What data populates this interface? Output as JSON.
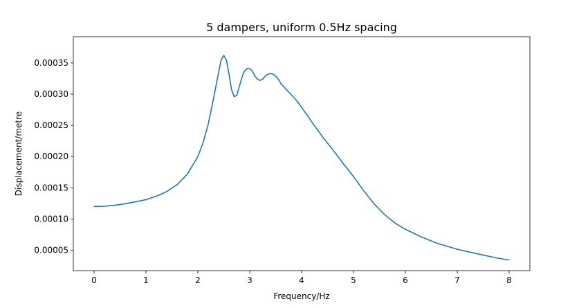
{
  "chart_data": {
    "type": "line",
    "title": "5 dampers, uniform 0.5Hz spacing",
    "xlabel": "Frequency/Hz",
    "ylabel": "Displacement/metre",
    "xlim": [
      -0.4,
      8.4
    ],
    "ylim": [
      1.73e-05,
      0.000392
    ],
    "xticks": [
      0,
      1,
      2,
      3,
      4,
      5,
      6,
      7,
      8
    ],
    "xtick_labels": [
      "0",
      "1",
      "2",
      "3",
      "4",
      "5",
      "6",
      "7",
      "8"
    ],
    "yticks": [
      5e-05,
      0.0001,
      0.00015,
      0.0002,
      0.00025,
      0.0003,
      0.00035
    ],
    "ytick_labels": [
      "0.00005",
      "0.00010",
      "0.00015",
      "0.00020",
      "0.00025",
      "0.00030",
      "0.00035"
    ],
    "grid": false,
    "line_color": "#1f77b4",
    "series": [
      {
        "x": [
          0,
          0.2,
          0.4,
          0.6,
          0.8,
          1.0,
          1.2,
          1.4,
          1.6,
          1.8,
          2.0,
          2.1,
          2.2,
          2.3,
          2.4,
          2.45,
          2.5,
          2.55,
          2.6,
          2.65,
          2.7,
          2.75,
          2.8,
          2.85,
          2.9,
          2.95,
          3.0,
          3.05,
          3.1,
          3.15,
          3.2,
          3.25,
          3.3,
          3.35,
          3.4,
          3.45,
          3.5,
          3.55,
          3.6,
          3.7,
          3.8,
          3.9,
          4.0,
          4.2,
          4.4,
          4.6,
          4.8,
          5.0,
          5.2,
          5.4,
          5.6,
          5.8,
          6.0,
          6.3,
          6.6,
          7.0,
          7.4,
          7.8,
          8.0
        ],
        "y": [
          0.00012,
          0.0001205,
          0.000122,
          0.0001245,
          0.0001275,
          0.000131,
          0.0001365,
          0.000144,
          0.000155,
          0.000172,
          0.0002,
          0.000222,
          0.000252,
          0.000292,
          0.000335,
          0.000355,
          0.000362,
          0.000355,
          0.000332,
          0.000307,
          0.000296,
          0.000298,
          0.000312,
          0.000327,
          0.000337,
          0.000341,
          0.000341,
          0.000337,
          0.000329,
          0.000324,
          0.000322,
          0.000324,
          0.000329,
          0.000332,
          0.000333,
          0.000332,
          0.000329,
          0.000324,
          0.000317,
          0.000308,
          0.000299,
          0.00029,
          0.000279,
          0.000255,
          0.000232,
          0.000211,
          0.000189,
          0.000168,
          0.000145,
          0.000124,
          0.000107,
          9.35e-05,
          8.35e-05,
          7.15e-05,
          6.15e-05,
          5.15e-05,
          4.4e-05,
          3.7e-05,
          3.45e-05
        ]
      }
    ]
  }
}
